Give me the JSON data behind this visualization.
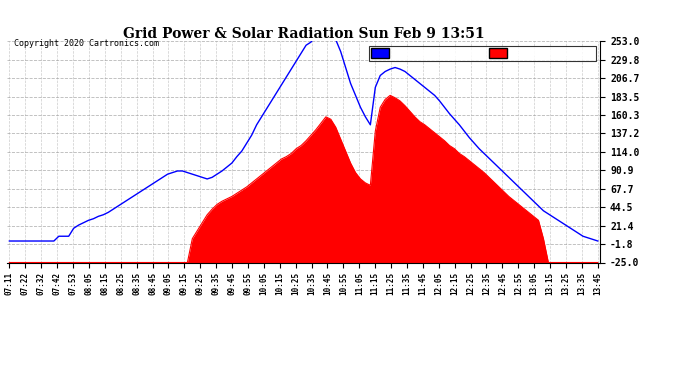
{
  "title": "Grid Power & Solar Radiation Sun Feb 9 13:51",
  "copyright": "Copyright 2020 Cartronics.com",
  "radiation_color": "#0000ff",
  "grid_color": "#ff0000",
  "bg_color": "#ffffff",
  "plot_bg_color": "#ffffff",
  "grid_line_color": "#999999",
  "ylim": [
    -25.0,
    253.0
  ],
  "yticks": [
    253.0,
    229.8,
    206.7,
    183.5,
    160.3,
    137.2,
    114.0,
    90.9,
    67.7,
    44.5,
    21.4,
    -1.8,
    -25.0
  ],
  "x_labels": [
    "07:11",
    "07:22",
    "07:32",
    "07:42",
    "07:53",
    "08:05",
    "08:15",
    "08:25",
    "08:35",
    "08:45",
    "09:05",
    "09:15",
    "09:25",
    "09:35",
    "09:45",
    "09:55",
    "10:05",
    "10:15",
    "10:25",
    "10:35",
    "10:45",
    "10:55",
    "11:05",
    "11:15",
    "11:25",
    "11:35",
    "11:45",
    "12:05",
    "12:15",
    "12:25",
    "12:35",
    "12:45",
    "12:55",
    "13:05",
    "13:15",
    "13:25",
    "13:35",
    "13:45"
  ],
  "radiation_data": [
    2,
    2,
    2,
    2,
    2,
    2,
    2,
    2,
    2,
    2,
    8,
    8,
    8,
    18,
    22,
    25,
    28,
    30,
    33,
    35,
    38,
    42,
    46,
    50,
    54,
    58,
    62,
    66,
    70,
    74,
    78,
    82,
    86,
    88,
    90,
    90,
    88,
    86,
    84,
    82,
    80,
    82,
    86,
    90,
    95,
    100,
    108,
    115,
    125,
    135,
    148,
    158,
    168,
    178,
    188,
    198,
    208,
    218,
    228,
    238,
    248,
    252,
    260,
    270,
    275,
    268,
    255,
    240,
    220,
    200,
    185,
    170,
    158,
    148,
    195,
    210,
    215,
    218,
    220,
    218,
    215,
    210,
    205,
    200,
    195,
    190,
    185,
    178,
    170,
    162,
    155,
    148,
    140,
    132,
    125,
    118,
    112,
    106,
    100,
    94,
    88,
    82,
    76,
    70,
    64,
    58,
    52,
    46,
    40,
    36,
    32,
    28,
    24,
    20,
    16,
    12,
    8,
    6,
    4,
    2
  ],
  "grid_data": [
    -25,
    -25,
    -25,
    -25,
    -25,
    -25,
    -25,
    -25,
    -25,
    -25,
    -25,
    -25,
    -25,
    -25,
    -25,
    -25,
    -25,
    -25,
    -25,
    -25,
    -25,
    -25,
    -25,
    -25,
    -25,
    -25,
    -25,
    -25,
    -25,
    -25,
    -25,
    -25,
    -25,
    -25,
    -25,
    -25,
    -25,
    5,
    15,
    25,
    35,
    42,
    48,
    52,
    55,
    58,
    62,
    66,
    70,
    75,
    80,
    85,
    90,
    95,
    100,
    105,
    108,
    112,
    118,
    122,
    128,
    135,
    142,
    150,
    158,
    155,
    145,
    130,
    115,
    100,
    88,
    80,
    75,
    72,
    140,
    170,
    180,
    185,
    182,
    178,
    172,
    165,
    158,
    152,
    148,
    143,
    138,
    133,
    128,
    122,
    118,
    112,
    108,
    103,
    98,
    93,
    88,
    82,
    76,
    70,
    64,
    58,
    53,
    48,
    43,
    38,
    33,
    28,
    5,
    -25,
    -25,
    -25,
    -25,
    -25,
    -25,
    -25,
    -25,
    -25,
    -25,
    -25
  ],
  "n_display_labels": 38
}
